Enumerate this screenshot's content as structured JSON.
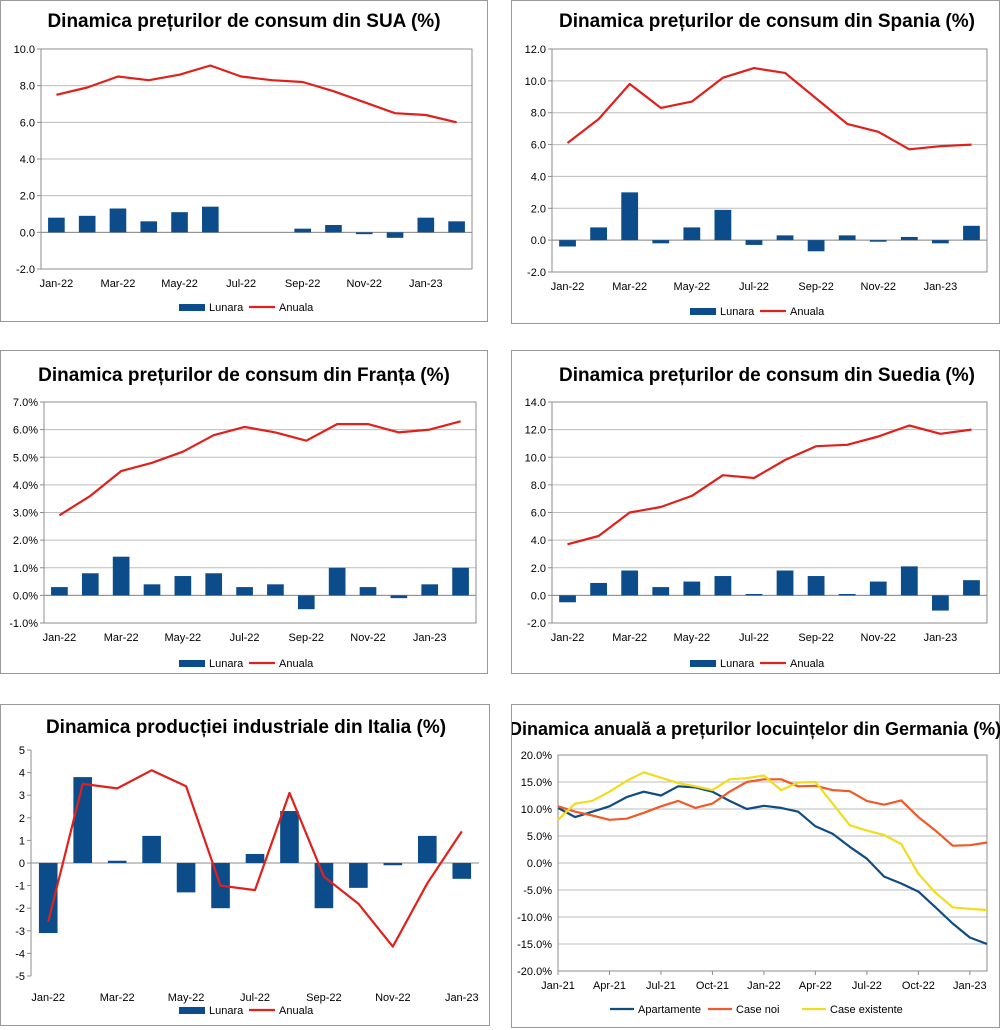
{
  "colors": {
    "bar": "#0c4c8a",
    "line_red": "#e0201b",
    "line_orange": "#f05a28",
    "line_navy": "#0f4c81",
    "line_yellow": "#f2dc1e",
    "grid": "#bdbdbd",
    "axis": "#8c8c8c"
  },
  "chart_data": [
    {
      "id": "usa",
      "type": "bar+line",
      "title": "Dinamica prețurilor de consum din SUA (%)",
      "categories": [
        "Jan-22",
        "Feb-22",
        "Mar-22",
        "Apr-22",
        "May-22",
        "Jun-22",
        "Jul-22",
        "Aug-22",
        "Sep-22",
        "Oct-22",
        "Nov-22",
        "Dec-22",
        "Jan-23",
        "Feb-23"
      ],
      "x_tick_labels": [
        "Jan-22",
        "Mar-22",
        "May-22",
        "Jul-22",
        "Sep-22",
        "Nov-22",
        "Jan-23"
      ],
      "y_tick_labels": [
        "10.0",
        "8.0",
        "6.0",
        "4.0",
        "2.0",
        "0.0",
        "-2.0"
      ],
      "ylim": [
        -2,
        10
      ],
      "ystep": 2,
      "grid": true,
      "series": [
        {
          "name": "Lunara",
          "kind": "bar",
          "values": [
            0.8,
            0.9,
            1.3,
            0.6,
            1.1,
            1.4,
            0.0,
            0.0,
            0.2,
            0.4,
            -0.1,
            -0.3,
            0.8,
            0.6
          ]
        },
        {
          "name": "Anuala",
          "kind": "line",
          "values": [
            7.5,
            7.9,
            8.5,
            8.3,
            8.6,
            9.1,
            8.5,
            8.3,
            8.2,
            7.7,
            7.1,
            6.5,
            6.4,
            6.0
          ]
        }
      ],
      "legend": [
        "Lunara",
        "Anuala"
      ]
    },
    {
      "id": "spania",
      "type": "bar+line",
      "title": "Dinamica prețurilor de consum din Spania (%)",
      "categories": [
        "Jan-22",
        "Feb-22",
        "Mar-22",
        "Apr-22",
        "May-22",
        "Jun-22",
        "Jul-22",
        "Aug-22",
        "Sep-22",
        "Oct-22",
        "Nov-22",
        "Dec-22",
        "Jan-23",
        "Feb-23"
      ],
      "x_tick_labels": [
        "Jan-22",
        "Mar-22",
        "May-22",
        "Jul-22",
        "Sep-22",
        "Nov-22",
        "Jan-23"
      ],
      "y_tick_labels": [
        "12.0",
        "10.0",
        "8.0",
        "6.0",
        "4.0",
        "2.0",
        "0.0",
        "-2.0"
      ],
      "ylim": [
        -2,
        12
      ],
      "ystep": 2,
      "grid": true,
      "series": [
        {
          "name": "Lunara",
          "kind": "bar",
          "values": [
            -0.4,
            0.8,
            3.0,
            -0.2,
            0.8,
            1.9,
            -0.3,
            0.3,
            -0.7,
            0.3,
            -0.1,
            0.2,
            -0.2,
            0.9
          ]
        },
        {
          "name": "Anuala",
          "kind": "line",
          "values": [
            6.1,
            7.6,
            9.8,
            8.3,
            8.7,
            10.2,
            10.8,
            10.5,
            8.9,
            7.3,
            6.8,
            5.7,
            5.9,
            6.0
          ]
        }
      ],
      "legend": [
        "Lunara",
        "Anuala"
      ]
    },
    {
      "id": "franta",
      "type": "bar+line",
      "title": "Dinamica prețurilor de consum din Franța (%)",
      "categories": [
        "Jan-22",
        "Feb-22",
        "Mar-22",
        "Apr-22",
        "May-22",
        "Jun-22",
        "Jul-22",
        "Aug-22",
        "Sep-22",
        "Oct-22",
        "Nov-22",
        "Dec-22",
        "Jan-23",
        "Feb-23"
      ],
      "x_tick_labels": [
        "Jan-22",
        "Mar-22",
        "May-22",
        "Jul-22",
        "Sep-22",
        "Nov-22",
        "Jan-23"
      ],
      "y_tick_labels": [
        "7.0%",
        "6.0%",
        "5.0%",
        "4.0%",
        "3.0%",
        "2.0%",
        "1.0%",
        "0.0%",
        "-1.0%"
      ],
      "ylim": [
        -1,
        7
      ],
      "ystep": 1,
      "grid": true,
      "series": [
        {
          "name": "Lunara",
          "kind": "bar",
          "values": [
            0.3,
            0.8,
            1.4,
            0.4,
            0.7,
            0.8,
            0.3,
            0.4,
            -0.5,
            1.0,
            0.3,
            -0.1,
            0.4,
            1.0
          ]
        },
        {
          "name": "Anuala",
          "kind": "line",
          "values": [
            2.9,
            3.6,
            4.5,
            4.8,
            5.2,
            5.8,
            6.1,
            5.9,
            5.6,
            6.2,
            6.2,
            5.9,
            6.0,
            6.3
          ]
        }
      ],
      "legend": [
        "Lunara",
        "Anuala"
      ]
    },
    {
      "id": "suedia",
      "type": "bar+line",
      "title": "Dinamica prețurilor de consum din Suedia (%)",
      "categories": [
        "Jan-22",
        "Feb-22",
        "Mar-22",
        "Apr-22",
        "May-22",
        "Jun-22",
        "Jul-22",
        "Aug-22",
        "Sep-22",
        "Oct-22",
        "Nov-22",
        "Dec-22",
        "Jan-23",
        "Feb-23"
      ],
      "x_tick_labels": [
        "Jan-22",
        "Mar-22",
        "May-22",
        "Jul-22",
        "Sep-22",
        "Nov-22",
        "Jan-23"
      ],
      "y_tick_labels": [
        "14.0",
        "12.0",
        "10.0",
        "8.0",
        "6.0",
        "4.0",
        "2.0",
        "0.0",
        "-2.0"
      ],
      "ylim": [
        -2,
        14
      ],
      "ystep": 2,
      "grid": true,
      "series": [
        {
          "name": "Lunara",
          "kind": "bar",
          "values": [
            -0.5,
            0.9,
            1.8,
            0.6,
            1.0,
            1.4,
            0.1,
            1.8,
            1.4,
            0.1,
            1.0,
            2.1,
            -1.1,
            1.1
          ]
        },
        {
          "name": "Anuala",
          "kind": "line",
          "values": [
            3.7,
            4.3,
            6.0,
            6.4,
            7.2,
            8.7,
            8.5,
            9.8,
            10.8,
            10.9,
            11.5,
            12.3,
            11.7,
            12.0
          ]
        }
      ],
      "legend": [
        "Lunara",
        "Anuala"
      ]
    },
    {
      "id": "italia",
      "type": "bar+line",
      "title": "Dinamica producției industriale din Italia (%)",
      "categories": [
        "Jan-22",
        "Feb-22",
        "Mar-22",
        "Apr-22",
        "May-22",
        "Jun-22",
        "Jul-22",
        "Aug-22",
        "Sep-22",
        "Oct-22",
        "Nov-22",
        "Dec-22",
        "Jan-23"
      ],
      "x_tick_labels": [
        "Jan-22",
        "Mar-22",
        "May-22",
        "Jul-22",
        "Sep-22",
        "Nov-22",
        "Jan-23"
      ],
      "y_tick_labels": [
        "5",
        "4",
        "3",
        "2",
        "1",
        "0",
        "-1",
        "-2",
        "-3",
        "-4",
        "-5"
      ],
      "ylim": [
        -5,
        5
      ],
      "ystep": 1,
      "grid": false,
      "series": [
        {
          "name": "Lunara",
          "kind": "bar",
          "values": [
            -3.1,
            3.8,
            0.1,
            1.2,
            -1.3,
            -2.0,
            0.4,
            2.3,
            -2.0,
            -1.1,
            -0.1,
            1.2,
            -0.7
          ]
        },
        {
          "name": "Anuala",
          "kind": "line",
          "values": [
            -2.6,
            3.5,
            3.3,
            4.1,
            3.4,
            -1.0,
            -1.2,
            3.1,
            -0.6,
            -1.8,
            -3.7,
            -0.9,
            1.4
          ]
        }
      ],
      "legend": [
        "Lunara",
        "Anuala"
      ]
    },
    {
      "id": "germania",
      "type": "line",
      "title": "Dinamica anuală a prețurilor locuințelor din Germania (%)",
      "x_tick_labels": [
        "Jan-21",
        "Apr-21",
        "Jul-21",
        "Oct-21",
        "Jan-22",
        "Apr-22",
        "Jul-22",
        "Oct-22",
        "Jan-23"
      ],
      "y_tick_labels": [
        "20.0%",
        "15.0%",
        "10.0%",
        "5.0%",
        "0.0%",
        "-5.0%",
        "-10.0%",
        "-15.0%",
        "-20.0%"
      ],
      "ylim": [
        -20,
        20
      ],
      "ystep": 5,
      "grid": true,
      "series": [
        {
          "name": "Apartamente",
          "values": [
            10.2,
            8.5,
            9.5,
            10.5,
            12.2,
            13.2,
            12.5,
            14.2,
            14.0,
            13.2,
            11.5,
            10.0,
            10.6,
            10.2,
            9.5,
            6.8,
            5.4,
            3.0,
            0.8,
            -2.5,
            -3.8,
            -5.3,
            -8.2,
            -11.2,
            -13.8,
            -15.0
          ]
        },
        {
          "name": "Case noi",
          "values": [
            10.5,
            9.5,
            8.8,
            8.0,
            8.2,
            9.3,
            10.5,
            11.5,
            10.2,
            11.0,
            13.2,
            15.0,
            15.5,
            15.5,
            14.2,
            14.3,
            13.5,
            13.3,
            11.5,
            10.8,
            11.6,
            8.5,
            6.0,
            3.2,
            3.3,
            3.8
          ]
        },
        {
          "name": "Case existente",
          "values": [
            8.0,
            11.0,
            11.5,
            13.2,
            15.2,
            16.8,
            15.8,
            14.8,
            14.2,
            13.5,
            15.5,
            15.7,
            16.2,
            13.5,
            14.9,
            15.0,
            11.0,
            7.0,
            6.0,
            5.2,
            3.5,
            -2.0,
            -5.5,
            -8.2,
            -8.5,
            -8.7
          ]
        }
      ],
      "legend": [
        "Apartamente",
        "Case noi",
        "Case existente"
      ]
    }
  ]
}
